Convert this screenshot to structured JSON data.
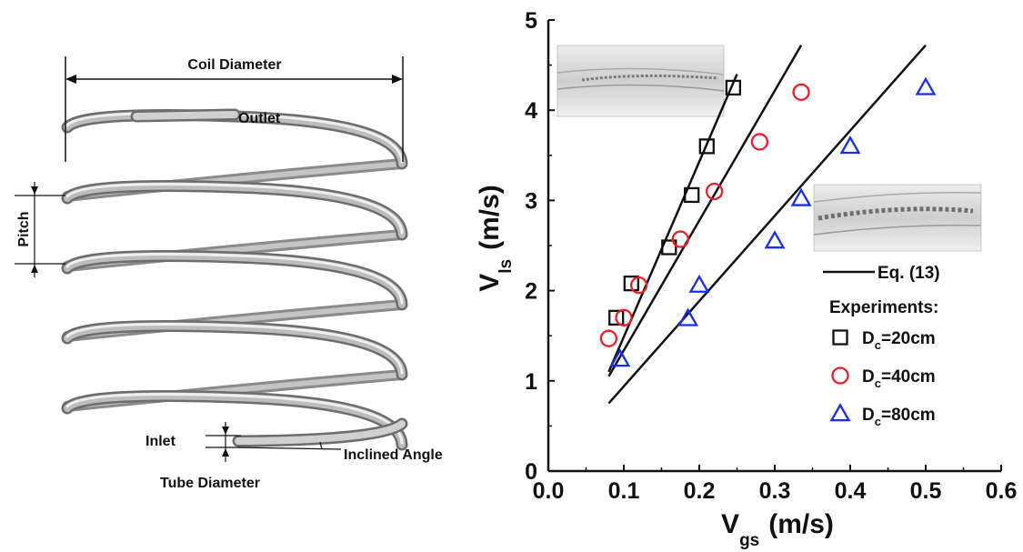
{
  "coil_diagram": {
    "labels": {
      "coil_diameter": "Coil Diameter",
      "outlet": "Outlet",
      "pitch": "Pitch",
      "inlet": "Inlet",
      "inclined_angle": "Inclined Angle",
      "tube_diameter": "Tube Diameter"
    }
  },
  "chart_data": {
    "type": "scatter",
    "xlabel_main": "V",
    "xlabel_sub": "gs",
    "xlabel_unit": "(m/s)",
    "ylabel_main": "V",
    "ylabel_sub": "ls",
    "ylabel_unit": "(m/s)",
    "xlim": [
      0.0,
      0.6
    ],
    "ylim": [
      0,
      5
    ],
    "xticks": [
      "0.0",
      "0.1",
      "0.2",
      "0.3",
      "0.4",
      "0.5",
      "0.6"
    ],
    "yticks": [
      "0",
      "1",
      "2",
      "3",
      "4",
      "5"
    ],
    "grid": false,
    "legend_position": "bottom-right",
    "legend_line_label": "Eq. (13)",
    "legend_header": "Experiments:",
    "series": [
      {
        "label_main": "D",
        "label_sub": "c",
        "label_rest": "=20cm",
        "marker": "square",
        "color": "#111111",
        "x": [
          0.09,
          0.11,
          0.16,
          0.19,
          0.21,
          0.245
        ],
        "y": [
          1.7,
          2.08,
          2.48,
          3.06,
          3.6,
          4.25
        ]
      },
      {
        "label_main": "D",
        "label_sub": "c",
        "label_rest": "=40cm",
        "marker": "circle",
        "color": "#e8202a",
        "x": [
          0.08,
          0.1,
          0.12,
          0.175,
          0.22,
          0.28,
          0.335
        ],
        "y": [
          1.47,
          1.7,
          2.06,
          2.57,
          3.1,
          3.65,
          4.2
        ]
      },
      {
        "label_main": "D",
        "label_sub": "c",
        "label_rest": "=80cm",
        "marker": "triangle",
        "color": "#1a2ee6",
        "x": [
          0.095,
          0.185,
          0.2,
          0.3,
          0.335,
          0.4,
          0.5
        ],
        "y": [
          1.24,
          1.69,
          2.06,
          2.55,
          3.02,
          3.6,
          4.25
        ]
      }
    ],
    "model_lines": [
      {
        "name": "D_c=20cm",
        "x": [
          0.08,
          0.25
        ],
        "y": [
          1.1,
          4.4
        ]
      },
      {
        "name": "D_c=40cm",
        "x": [
          0.08,
          0.335
        ],
        "y": [
          1.05,
          4.72
        ]
      },
      {
        "name": "D_c=80cm",
        "x": [
          0.08,
          0.5
        ],
        "y": [
          0.75,
          4.72
        ]
      }
    ]
  }
}
